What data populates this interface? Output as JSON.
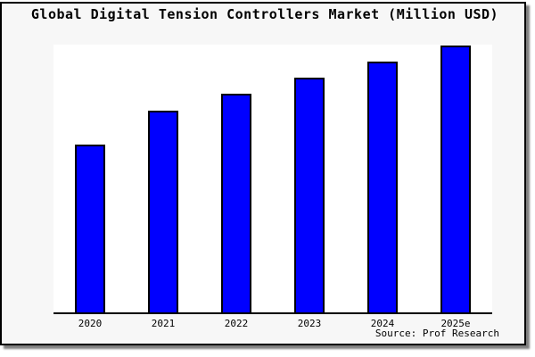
{
  "chart_data": {
    "type": "bar",
    "title": "Global Digital Tension Controllers Market (Million USD)",
    "categories": [
      "2020",
      "2021",
      "2022",
      "2023",
      "2024",
      "2025e"
    ],
    "values": [
      62.8,
      75.5,
      81.8,
      87.8,
      93.8,
      100
    ],
    "value_scale": "relative, y-axis unlabeled in chart (tallest bar = 100)",
    "xlabel": "",
    "ylabel": "",
    "ylim": [
      0,
      100.2
    ],
    "grid": false,
    "legend": false,
    "y_axis_ticks": "none",
    "source": "Source: Prof Research",
    "bar_color": "#0000ff"
  },
  "colors": {
    "page_background": "#f7f7f7",
    "plot_background": "#ffffff",
    "bar_fill": "#0000ff",
    "bar_border": "#000000",
    "axis_line": "#000000",
    "frame_border": "#000000",
    "shadow": "#808080",
    "text": "#000000"
  }
}
